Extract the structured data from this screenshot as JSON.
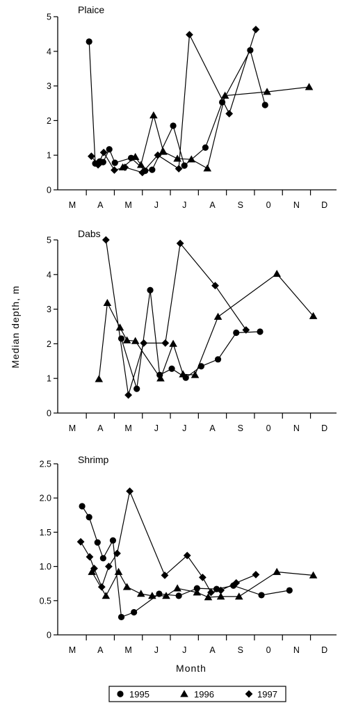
{
  "shared": {
    "ylabel": "Median depth, m",
    "xlabel": "Month",
    "month_labels": [
      "M",
      "A",
      "M",
      "J",
      "J",
      "A",
      "S",
      "0",
      "N",
      "D"
    ]
  },
  "legend": {
    "placement": "bottom-center",
    "entries": [
      {
        "label": "1995",
        "marker": "circle"
      },
      {
        "label": "1996",
        "marker": "triangle"
      },
      {
        "label": "1997",
        "marker": "diamond"
      }
    ]
  },
  "chart_data": [
    {
      "type": "line",
      "title": "Plaice",
      "xlabel": "",
      "ylabel": "",
      "x_unit": "months (1 = M ... 10 = D)",
      "xlim": [
        0.3,
        10.6
      ],
      "ylim": [
        0,
        5
      ],
      "yticks": [
        0,
        1,
        2,
        3,
        4,
        5
      ],
      "ytick_labels": [
        "0",
        "1",
        "2",
        "3",
        "4",
        "5"
      ],
      "series": [
        {
          "name": "1995",
          "marker": "circle",
          "points": [
            [
              1.6,
              4.28
            ],
            [
              1.82,
              0.76
            ],
            [
              1.98,
              0.82
            ],
            [
              2.1,
              0.8
            ],
            [
              2.32,
              1.17
            ],
            [
              2.52,
              0.78
            ],
            [
              3.1,
              0.92
            ],
            [
              3.6,
              0.55
            ],
            [
              3.85,
              0.58
            ],
            [
              4.6,
              1.85
            ],
            [
              5.0,
              0.7
            ],
            [
              5.75,
              1.22
            ],
            [
              6.35,
              2.53
            ],
            [
              7.35,
              4.03
            ],
            [
              7.88,
              2.45
            ]
          ]
        },
        {
          "name": "1996",
          "marker": "triangle",
          "points": [
            [
              2.8,
              0.65
            ],
            [
              3.25,
              0.95
            ],
            [
              3.45,
              0.72
            ],
            [
              3.9,
              2.15
            ],
            [
              4.25,
              1.1
            ],
            [
              4.75,
              0.9
            ],
            [
              5.25,
              0.88
            ],
            [
              5.82,
              0.62
            ],
            [
              6.45,
              2.72
            ],
            [
              7.95,
              2.83
            ],
            [
              9.45,
              2.97
            ]
          ]
        },
        {
          "name": "1997",
          "marker": "diamond",
          "points": [
            [
              1.68,
              0.97
            ],
            [
              1.92,
              0.72
            ],
            [
              2.12,
              1.08
            ],
            [
              2.5,
              0.57
            ],
            [
              2.88,
              0.65
            ],
            [
              3.5,
              0.5
            ],
            [
              4.05,
              1.0
            ],
            [
              4.8,
              0.61
            ],
            [
              5.18,
              4.48
            ],
            [
              6.6,
              2.2
            ],
            [
              7.55,
              4.63
            ]
          ]
        }
      ]
    },
    {
      "type": "line",
      "title": "Dabs",
      "xlabel": "",
      "ylabel": "Median depth, m",
      "x_unit": "months (1 = M ... 10 = D)",
      "xlim": [
        0.3,
        10.6
      ],
      "ylim": [
        0,
        5
      ],
      "yticks": [
        0,
        1,
        2,
        3,
        4,
        5
      ],
      "ytick_labels": [
        "0",
        "1",
        "2",
        "3",
        "4",
        "5"
      ],
      "series": [
        {
          "name": "1995",
          "marker": "circle",
          "points": [
            [
              2.75,
              2.15
            ],
            [
              3.3,
              0.7
            ],
            [
              3.78,
              3.55
            ],
            [
              4.12,
              1.1
            ],
            [
              4.55,
              1.28
            ],
            [
              5.05,
              1.02
            ],
            [
              5.6,
              1.35
            ],
            [
              6.2,
              1.55
            ],
            [
              6.85,
              2.32
            ],
            [
              7.7,
              2.35
            ]
          ]
        },
        {
          "name": "1996",
          "marker": "triangle",
          "points": [
            [
              1.95,
              0.98
            ],
            [
              2.25,
              3.18
            ],
            [
              2.7,
              2.47
            ],
            [
              2.95,
              2.1
            ],
            [
              3.25,
              2.08
            ],
            [
              4.15,
              1.0
            ],
            [
              4.6,
              2.0
            ],
            [
              4.95,
              1.12
            ],
            [
              5.38,
              1.1
            ],
            [
              6.2,
              2.78
            ],
            [
              8.3,
              4.02
            ],
            [
              9.6,
              2.8
            ]
          ]
        },
        {
          "name": "1997",
          "marker": "diamond",
          "points": [
            [
              2.2,
              5.0
            ],
            [
              3.0,
              0.52
            ],
            [
              3.55,
              2.02
            ],
            [
              4.32,
              2.02
            ],
            [
              4.85,
              4.9
            ],
            [
              6.1,
              3.68
            ],
            [
              7.2,
              2.4
            ]
          ]
        }
      ]
    },
    {
      "type": "line",
      "title": "Shrimp",
      "xlabel": "Month",
      "ylabel": "",
      "x_unit": "months (1 = M ... 10 = D)",
      "xlim": [
        0.3,
        10.6
      ],
      "ylim": [
        0,
        2.5
      ],
      "yticks": [
        0,
        0.5,
        1.0,
        1.5,
        2.0,
        2.5
      ],
      "ytick_labels": [
        "0",
        "0.5",
        "1.0",
        "1.5",
        "2.0",
        "2.5"
      ],
      "series": [
        {
          "name": "1995",
          "marker": "circle",
          "points": [
            [
              1.35,
              1.88
            ],
            [
              1.6,
              1.72
            ],
            [
              1.9,
              1.35
            ],
            [
              2.1,
              1.12
            ],
            [
              2.45,
              1.38
            ],
            [
              2.75,
              0.26
            ],
            [
              3.2,
              0.33
            ],
            [
              4.1,
              0.6
            ],
            [
              4.8,
              0.57
            ],
            [
              5.45,
              0.68
            ],
            [
              6.15,
              0.67
            ],
            [
              6.75,
              0.72
            ],
            [
              7.75,
              0.58
            ],
            [
              8.75,
              0.65
            ]
          ]
        },
        {
          "name": "1996",
          "marker": "triangle",
          "points": [
            [
              1.7,
              0.92
            ],
            [
              2.2,
              0.57
            ],
            [
              2.65,
              0.92
            ],
            [
              2.95,
              0.7
            ],
            [
              3.45,
              0.6
            ],
            [
              3.85,
              0.57
            ],
            [
              4.35,
              0.57
            ],
            [
              4.75,
              0.68
            ],
            [
              5.45,
              0.62
            ],
            [
              5.85,
              0.55
            ],
            [
              6.3,
              0.56
            ],
            [
              6.95,
              0.56
            ],
            [
              8.3,
              0.92
            ],
            [
              9.6,
              0.87
            ]
          ]
        },
        {
          "name": "1997",
          "marker": "diamond",
          "points": [
            [
              1.3,
              1.36
            ],
            [
              1.62,
              1.14
            ],
            [
              1.78,
              0.97
            ],
            [
              2.05,
              0.7
            ],
            [
              2.3,
              1.0
            ],
            [
              2.6,
              1.19
            ],
            [
              3.05,
              2.1
            ],
            [
              4.3,
              0.87
            ],
            [
              5.1,
              1.16
            ],
            [
              5.65,
              0.84
            ],
            [
              5.95,
              0.62
            ],
            [
              6.3,
              0.65
            ],
            [
              6.85,
              0.76
            ],
            [
              7.55,
              0.88
            ]
          ]
        }
      ]
    }
  ]
}
